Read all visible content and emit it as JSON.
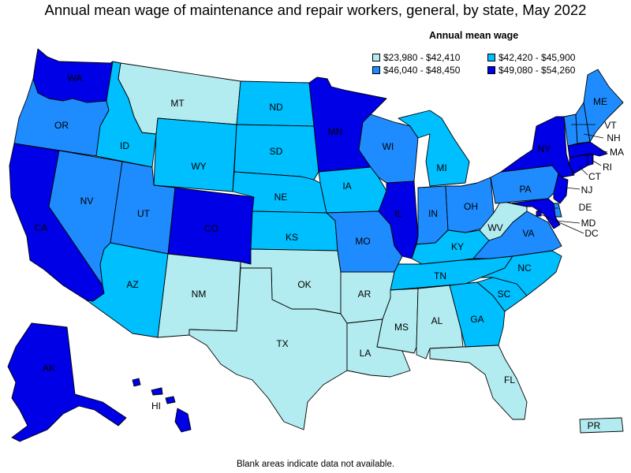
{
  "title": "Annual mean wage of maintenance and repair workers, general, by state, May 2022",
  "legend": {
    "title": "Annual mean wage",
    "items": [
      {
        "label": "$23,980 - $42,410",
        "color": "#b3ecf0"
      },
      {
        "label": "$42,420 - $45,900",
        "color": "#00bfff"
      },
      {
        "label": "$46,040 - $48,450",
        "color": "#1e8cff"
      },
      {
        "label": "$49,080 - $54,260",
        "color": "#0000e6"
      }
    ]
  },
  "footnote": "Blank areas indicate data not available.",
  "states": {
    "WA": {
      "label": "WA",
      "tier": 3
    },
    "OR": {
      "label": "OR",
      "tier": 2
    },
    "CA": {
      "label": "CA",
      "tier": 3
    },
    "NV": {
      "label": "NV",
      "tier": 2
    },
    "ID": {
      "label": "ID",
      "tier": 1
    },
    "MT": {
      "label": "MT",
      "tier": 0
    },
    "WY": {
      "label": "WY",
      "tier": 1
    },
    "UT": {
      "label": "UT",
      "tier": 2
    },
    "AZ": {
      "label": "AZ",
      "tier": 1
    },
    "CO": {
      "label": "CO",
      "tier": 3
    },
    "NM": {
      "label": "NM",
      "tier": 0
    },
    "ND": {
      "label": "ND",
      "tier": 1
    },
    "SD": {
      "label": "SD",
      "tier": 1
    },
    "NE": {
      "label": "NE",
      "tier": 1
    },
    "KS": {
      "label": "KS",
      "tier": 1
    },
    "OK": {
      "label": "OK",
      "tier": 0
    },
    "TX": {
      "label": "TX",
      "tier": 0
    },
    "MN": {
      "label": "MN",
      "tier": 3
    },
    "IA": {
      "label": "IA",
      "tier": 1
    },
    "MO": {
      "label": "MO",
      "tier": 2
    },
    "AR": {
      "label": "AR",
      "tier": 0
    },
    "LA": {
      "label": "LA",
      "tier": 0
    },
    "WI": {
      "label": "WI",
      "tier": 2
    },
    "IL": {
      "label": "IL",
      "tier": 3
    },
    "MI": {
      "label": "MI",
      "tier": 1
    },
    "IN": {
      "label": "IN",
      "tier": 2
    },
    "OH": {
      "label": "OH",
      "tier": 2
    },
    "KY": {
      "label": "KY",
      "tier": 1
    },
    "TN": {
      "label": "TN",
      "tier": 1
    },
    "MS": {
      "label": "MS",
      "tier": 0
    },
    "AL": {
      "label": "AL",
      "tier": 0
    },
    "GA": {
      "label": "GA",
      "tier": 1
    },
    "FL": {
      "label": "FL",
      "tier": 0
    },
    "SC": {
      "label": "SC",
      "tier": 1
    },
    "NC": {
      "label": "NC",
      "tier": 1
    },
    "VA": {
      "label": "VA",
      "tier": 2
    },
    "WV": {
      "label": "WV",
      "tier": 0
    },
    "PA": {
      "label": "PA",
      "tier": 2
    },
    "NY": {
      "label": "NY",
      "tier": 3
    },
    "ME": {
      "label": "ME",
      "tier": 2
    },
    "VT": {
      "label": "VT",
      "tier": 2
    },
    "NH": {
      "label": "NH",
      "tier": 2
    },
    "MA": {
      "label": "MA",
      "tier": 3
    },
    "CT": {
      "label": "CT",
      "tier": 3
    },
    "RI": {
      "label": "RI",
      "tier": 3
    },
    "NJ": {
      "label": "NJ",
      "tier": 3
    },
    "DE": {
      "label": "DE",
      "tier": 2
    },
    "MD": {
      "label": "MD",
      "tier": 3
    },
    "DC": {
      "label": "DC",
      "tier": 3
    },
    "AK": {
      "label": "AK",
      "tier": 3
    },
    "HI": {
      "label": "HI",
      "tier": 3
    },
    "PR": {
      "label": "PR",
      "tier": 0
    }
  }
}
